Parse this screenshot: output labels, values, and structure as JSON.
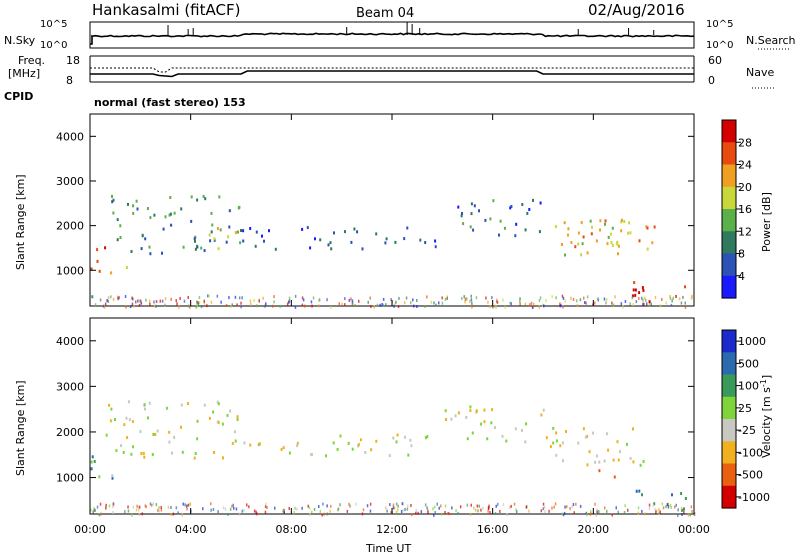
{
  "header": {
    "station": "Hankasalmi (fitACF)",
    "beam": "Beam 04",
    "date": "02/Aug/2016"
  },
  "noise_panel": {
    "left_label": "N.Sky",
    "right_label": "N.Search",
    "tick_top": "10^5",
    "tick_bottom": "10^0",
    "right_tick_top": "10^5",
    "right_tick_bottom": "10^0"
  },
  "freq_panel": {
    "left_label_1": "Freq.",
    "left_label_2": "[MHz]",
    "tick_top": "18",
    "tick_bottom": "8",
    "right_label": "Nave",
    "right_tick_top": "60",
    "right_tick_bottom": "0",
    "cpid_label": "CPID",
    "cpid_value": "normal (fast stereo) 153"
  },
  "x_axis": {
    "label": "Time UT",
    "ticks": [
      "00:00",
      "04:00",
      "08:00",
      "12:00",
      "16:00",
      "20:00",
      "00:00"
    ]
  },
  "chart_data": [
    {
      "type": "heatmap",
      "title": "Power",
      "ylabel": "Slant Range [km]",
      "xlabel": "Time UT",
      "x_range_hours": [
        0,
        24
      ],
      "ylim": [
        200,
        4500
      ],
      "y_ticks": [
        "1000",
        "2000",
        "3000",
        "4000"
      ],
      "colorbar_label": "Power [dB]",
      "colorbar_ticks": [
        "28",
        "24",
        "20",
        "16",
        "12",
        "8",
        "4"
      ],
      "colors": [
        "#1a1aff",
        "#2c52b8",
        "#2f7a5e",
        "#5bb04a",
        "#c8d83a",
        "#f0a020",
        "#e84a10",
        "#d40000"
      ],
      "scatter_regions": [
        {
          "t": [
            0.0,
            0.6
          ],
          "range": [
            700,
            1600
          ],
          "level": 0.85
        },
        {
          "t": [
            0.3,
            1.5
          ],
          "range": [
            900,
            1100
          ],
          "level": 0.75
        },
        {
          "t": [
            0.6,
            6.0
          ],
          "range": [
            1400,
            2700
          ],
          "level": 0.35
        },
        {
          "t": [
            4.0,
            6.0
          ],
          "range": [
            1500,
            2000
          ],
          "level": 0.55
        },
        {
          "t": [
            6.0,
            14.0
          ],
          "range": [
            1500,
            2000
          ],
          "level": 0.2
        },
        {
          "t": [
            14.0,
            18.0
          ],
          "range": [
            1800,
            2600
          ],
          "level": 0.25
        },
        {
          "t": [
            18.0,
            21.5
          ],
          "range": [
            1300,
            2200
          ],
          "level": 0.6
        },
        {
          "t": [
            19.0,
            22.5
          ],
          "range": [
            1500,
            2200
          ],
          "level": 0.7
        },
        {
          "t": [
            21.5,
            24.0
          ],
          "range": [
            300,
            800
          ],
          "level": 0.9
        }
      ]
    },
    {
      "type": "heatmap",
      "title": "Velocity",
      "ylabel": "Slant Range [km]",
      "xlabel": "Time UT",
      "x_range_hours": [
        0,
        24
      ],
      "ylim": [
        200,
        4500
      ],
      "y_ticks": [
        "1000",
        "2000",
        "3000",
        "4000"
      ],
      "colorbar_label": "Velocity [m s^-1]",
      "colorbar_ticks": [
        "1000",
        "500",
        "100",
        "25",
        "-25",
        "-100",
        "-500",
        "-1000"
      ],
      "colors": [
        "#1a2acc",
        "#2c6ab0",
        "#3a9a5a",
        "#7ed43a",
        "#c8c8c0",
        "#f0b020",
        "#e86010",
        "#d40000"
      ],
      "scatter_regions": [
        {
          "t": [
            0.0,
            0.6
          ],
          "range": [
            700,
            1600
          ],
          "level": 0.3
        },
        {
          "t": [
            0.3,
            1.5
          ],
          "range": [
            900,
            1100
          ],
          "level": 0.4
        },
        {
          "t": [
            0.6,
            6.0
          ],
          "range": [
            1400,
            2700
          ],
          "level": 0.55
        },
        {
          "t": [
            6.0,
            14.0
          ],
          "range": [
            1500,
            2000
          ],
          "level": 0.55
        },
        {
          "t": [
            14.0,
            18.0
          ],
          "range": [
            1800,
            2600
          ],
          "level": 0.55
        },
        {
          "t": [
            18.0,
            22.0
          ],
          "range": [
            1300,
            2200
          ],
          "level": 0.6
        },
        {
          "t": [
            19.5,
            21.0
          ],
          "range": [
            1000,
            1500
          ],
          "level": 0.75
        },
        {
          "t": [
            21.5,
            24.0
          ],
          "range": [
            300,
            800
          ],
          "level": 0.2
        }
      ]
    }
  ]
}
